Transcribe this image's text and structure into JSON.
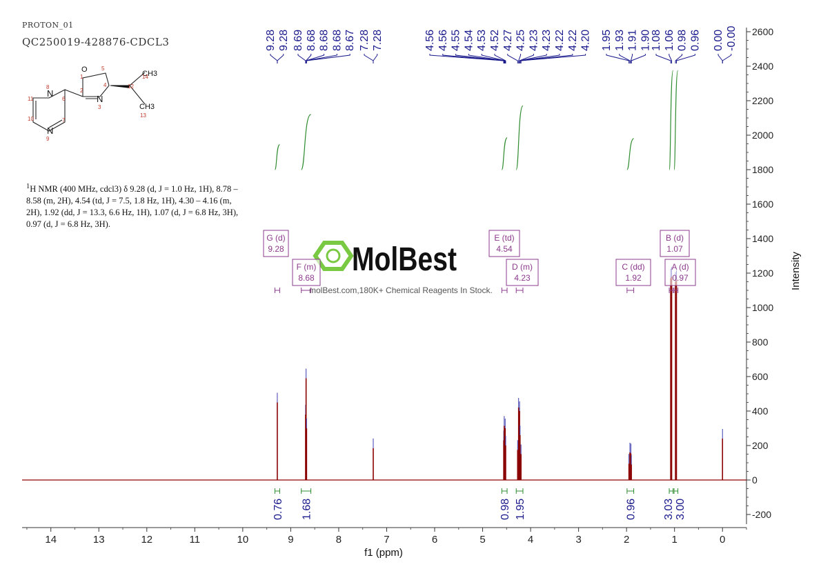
{
  "header": {
    "experiment": "PROTON_01",
    "sample": "QC250019-428876-CDCL3"
  },
  "description": {
    "sup": "1",
    "text": "H NMR (400 MHz, cdcl3) δ 9.28 (d, J = 1.0 Hz, 1H), 8.78 – 8.58 (m, 2H), 4.54 (td, J = 7.5, 1.8 Hz, 1H), 4.30 – 4.16 (m, 2H), 1.92 (dd, J = 13.3, 6.6 Hz, 1H), 1.07 (d, J = 6.8 Hz, 3H), 0.97 (d, J = 6.8 Hz, 3H)."
  },
  "structure": {
    "atoms": [
      "O",
      "N",
      "N",
      "N",
      "CH3",
      "CH3"
    ],
    "numbers": [
      "1",
      "2",
      "3",
      "4",
      "5",
      "6",
      "7",
      "8",
      "9",
      "10",
      "11",
      "12",
      "13",
      "14"
    ]
  },
  "watermark": {
    "brand": "MolBest",
    "tagline": "molBest.com,180K+ Chemical Reagents In Stock."
  },
  "colors": {
    "spectrum": "#8b0000",
    "peak_labels": "#1a1a8c",
    "integrals": "#2e8b2e",
    "multiplets": "#8b3a8b",
    "logo_green": "#7ac943"
  },
  "chart_data": {
    "type": "line",
    "xlabel": "f1 (ppm)",
    "ylabel": "Intensity",
    "xlim": [
      14.6,
      -0.5
    ],
    "ylim": [
      -250,
      2650
    ],
    "x_ticks": [
      14,
      13,
      12,
      11,
      10,
      9,
      8,
      7,
      6,
      5,
      4,
      3,
      2,
      1,
      0
    ],
    "y_ticks": [
      -200,
      0,
      200,
      400,
      600,
      800,
      1000,
      1200,
      1400,
      1600,
      1800,
      2000,
      2200,
      2400,
      2600
    ],
    "peaks": [
      {
        "ppm": 9.28,
        "height": 450
      },
      {
        "ppm": 8.69,
        "height": 380
      },
      {
        "ppm": 8.68,
        "height": 590
      },
      {
        "ppm": 8.67,
        "height": 300
      },
      {
        "ppm": 7.28,
        "height": 185
      },
      {
        "ppm": 4.56,
        "height": 230
      },
      {
        "ppm": 4.55,
        "height": 315
      },
      {
        "ppm": 4.53,
        "height": 300
      },
      {
        "ppm": 4.52,
        "height": 200
      },
      {
        "ppm": 4.27,
        "height": 175
      },
      {
        "ppm": 4.25,
        "height": 420
      },
      {
        "ppm": 4.23,
        "height": 400
      },
      {
        "ppm": 4.22,
        "height": 260
      },
      {
        "ppm": 4.2,
        "height": 150
      },
      {
        "ppm": 1.95,
        "height": 95
      },
      {
        "ppm": 1.93,
        "height": 160
      },
      {
        "ppm": 1.91,
        "height": 155
      },
      {
        "ppm": 1.9,
        "height": 90
      },
      {
        "ppm": 1.08,
        "height": 1170
      },
      {
        "ppm": 1.06,
        "height": 1180
      },
      {
        "ppm": 0.98,
        "height": 1150
      },
      {
        "ppm": 0.96,
        "height": 1160
      },
      {
        "ppm": 0.0,
        "height": 240
      }
    ],
    "peak_labels": [
      {
        "label": "9.28",
        "ppm": 9.28
      },
      {
        "label": "9.28",
        "ppm": 9.28
      },
      {
        "label": "8.69",
        "ppm": 8.69
      },
      {
        "label": "8.68",
        "ppm": 8.68
      },
      {
        "label": "8.68",
        "ppm": 8.68
      },
      {
        "label": "8.68",
        "ppm": 8.68
      },
      {
        "label": "8.67",
        "ppm": 8.67
      },
      {
        "label": "7.28",
        "ppm": 7.28
      },
      {
        "label": "7.28",
        "ppm": 7.28
      },
      {
        "label": "4.56",
        "ppm": 4.56
      },
      {
        "label": "4.56",
        "ppm": 4.56
      },
      {
        "label": "4.55",
        "ppm": 4.55
      },
      {
        "label": "4.54",
        "ppm": 4.54
      },
      {
        "label": "4.53",
        "ppm": 4.53
      },
      {
        "label": "4.52",
        "ppm": 4.52
      },
      {
        "label": "4.27",
        "ppm": 4.27
      },
      {
        "label": "4.25",
        "ppm": 4.25
      },
      {
        "label": "4.23",
        "ppm": 4.23
      },
      {
        "label": "4.23",
        "ppm": 4.23
      },
      {
        "label": "4.22",
        "ppm": 4.22
      },
      {
        "label": "4.22",
        "ppm": 4.22
      },
      {
        "label": "4.20",
        "ppm": 4.2
      },
      {
        "label": "1.95",
        "ppm": 1.95
      },
      {
        "label": "1.93",
        "ppm": 1.93
      },
      {
        "label": "1.91",
        "ppm": 1.91
      },
      {
        "label": "1.90",
        "ppm": 1.9
      },
      {
        "label": "1.08",
        "ppm": 1.08
      },
      {
        "label": "1.06",
        "ppm": 1.06
      },
      {
        "label": "0.98",
        "ppm": 0.98
      },
      {
        "label": "0.96",
        "ppm": 0.96
      },
      {
        "label": "0.00",
        "ppm": 0.0
      },
      {
        "label": "-0.00",
        "ppm": 0.0
      }
    ],
    "integrals": [
      {
        "value": "0.76",
        "from": 9.33,
        "to": 9.23
      },
      {
        "value": "1.68",
        "from": 8.78,
        "to": 8.58
      },
      {
        "value": "0.98",
        "from": 4.6,
        "to": 4.49
      },
      {
        "value": "1.95",
        "from": 4.3,
        "to": 4.16
      },
      {
        "value": "0.96",
        "from": 1.99,
        "to": 1.85
      },
      {
        "value": "3.03",
        "from": 1.11,
        "to": 1.03
      },
      {
        "value": "3.00",
        "from": 1.01,
        "to": 0.93
      }
    ],
    "multiplets": [
      {
        "letter": "G",
        "type": "d",
        "shift": "9.28"
      },
      {
        "letter": "F",
        "type": "m",
        "shift": "8.68"
      },
      {
        "letter": "E",
        "type": "td",
        "shift": "4.54"
      },
      {
        "letter": "D",
        "type": "m",
        "shift": "4.23"
      },
      {
        "letter": "C",
        "type": "dd",
        "shift": "1.92"
      },
      {
        "letter": "B",
        "type": "d",
        "shift": "1.07"
      },
      {
        "letter": "A",
        "type": "d",
        "shift": "0.97"
      }
    ]
  }
}
